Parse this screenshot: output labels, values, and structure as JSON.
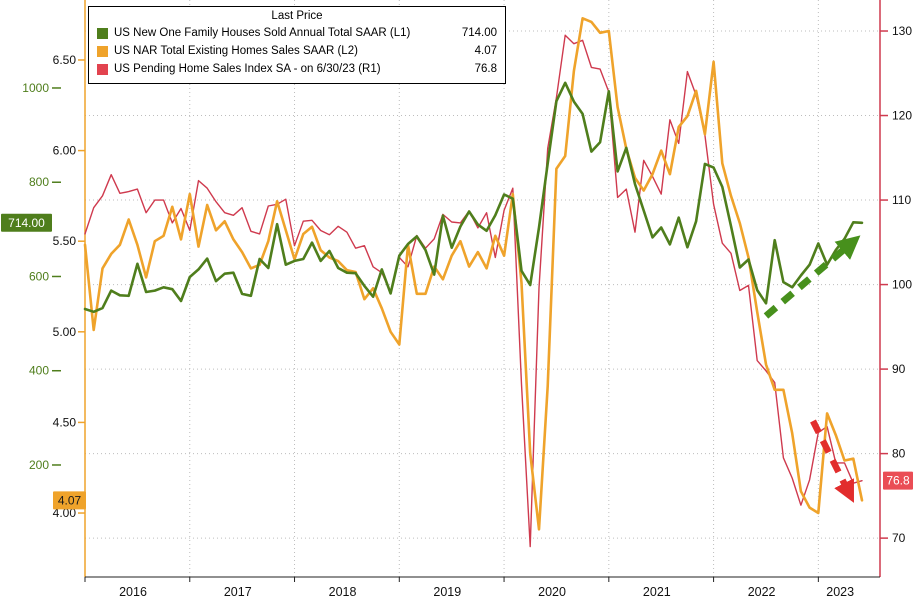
{
  "legend": {
    "title": "Last Price",
    "rows": [
      {
        "label": "US New One Family Houses Sold Annual Total SAAR  (L1)",
        "value": "714.00",
        "color": "#4f7e1c"
      },
      {
        "label": "US NAR Total Existing Homes Sales SAAR  (L2)",
        "value": "4.07",
        "color": "#efa32b"
      },
      {
        "label": "US Pending Home Sales Index SA -  on 6/30/23  (R1)",
        "value": "76.8",
        "color": "#e2434f"
      }
    ]
  },
  "chart_data": {
    "type": "line",
    "title": "Last Price",
    "frequency": "monthly",
    "x_start": "2016-01",
    "x_end": "2023-06",
    "x_tick_labels": [
      "2016",
      "2017",
      "2018",
      "2019",
      "2020",
      "2021",
      "2022",
      "2023"
    ],
    "grid": {
      "horizontal_on_axis": "R1",
      "style": "dotted",
      "color": "#bdbdbd"
    },
    "axes": {
      "L1": {
        "side": "left-outer",
        "min": -37.7,
        "max": 1186.7,
        "tick_values": [
          200,
          400,
          600,
          800,
          1000
        ],
        "tick_labels": [
          "200",
          "400",
          "600",
          "800",
          "1000"
        ],
        "last_value": 714.0,
        "last_label": "714.00",
        "color": "#4f7e1c",
        "badge_bg": "#4f7e1c",
        "badge_text_color": "#ffffff"
      },
      "L2": {
        "side": "left-inner",
        "min": 3.647,
        "max": 6.831,
        "tick_values": [
          4.0,
          4.5,
          5.0,
          5.5,
          6.0,
          6.5
        ],
        "tick_labels": [
          "4.00",
          "4.50",
          "5.00",
          "5.50",
          "6.00",
          "6.50"
        ],
        "last_value": 4.07,
        "last_label": "4.07",
        "color": "#efa32b",
        "badge_bg": "#efa32b",
        "badge_text_color": "#1a1a1a"
      },
      "R1": {
        "side": "right",
        "min": 65.4,
        "max": 133.67,
        "tick_values": [
          70,
          80,
          90,
          100,
          110,
          120,
          130
        ],
        "tick_labels": [
          "70",
          "80",
          "90",
          "100",
          "110",
          "120",
          "130"
        ],
        "last_value": 76.8,
        "last_label": "76.8",
        "color": "#cf3a4e",
        "badge_bg": "#ea4d55",
        "badge_text_color": "#ffffff"
      }
    },
    "series": [
      {
        "id": "new-home-sales",
        "name": "US New One Family Houses Sold Annual Total SAAR",
        "axis": "L1",
        "color": "#4f7e1c",
        "last_label": "714.00",
        "values": [
          531,
          525,
          533,
          570,
          560,
          559,
          627,
          567,
          570,
          577,
          573,
          548,
          599,
          615,
          638,
          590,
          606,
          608,
          563,
          559,
          637,
          618,
          711,
          625,
          633,
          637,
          672,
          633,
          654,
          618,
          608,
          607,
          580,
          557,
          615,
          564,
          644,
          669,
          685,
          656,
          604,
          729,
          661,
          706,
          738,
          710,
          697,
          730,
          774,
          765,
          612,
          582,
          704,
          840,
          972,
          1011,
          971,
          945,
          865,
          885,
          993,
          823,
          873,
          796,
          740,
          683,
          704,
          668,
          725,
          662,
          717,
          839,
          831,
          790,
          707,
          619,
          636,
          571,
          543,
          677,
          588,
          577,
          602,
          625,
          670,
          625,
          656,
          680,
          715,
          714
        ]
      },
      {
        "id": "existing-home-sales",
        "name": "US NAR Total Existing Homes Sales SAAR",
        "axis": "L2",
        "color": "#efa32b",
        "last_label": "4.07",
        "values": [
          5.48,
          5.01,
          5.35,
          5.43,
          5.48,
          5.62,
          5.48,
          5.3,
          5.5,
          5.53,
          5.69,
          5.51,
          5.76,
          5.47,
          5.7,
          5.56,
          5.61,
          5.51,
          5.44,
          5.35,
          5.37,
          5.5,
          5.72,
          5.56,
          5.4,
          5.54,
          5.58,
          5.45,
          5.41,
          5.39,
          5.34,
          5.33,
          5.18,
          5.24,
          5.13,
          5.0,
          4.93,
          5.48,
          5.21,
          5.21,
          5.36,
          5.29,
          5.42,
          5.5,
          5.36,
          5.44,
          5.35,
          5.53,
          5.42,
          5.76,
          5.27,
          4.33,
          3.91,
          4.7,
          5.9,
          5.97,
          6.44,
          6.73,
          6.71,
          6.65,
          6.66,
          6.24,
          6.01,
          5.85,
          5.78,
          5.87,
          6.0,
          5.87,
          6.13,
          6.19,
          6.33,
          6.09,
          6.49,
          5.93,
          5.75,
          5.6,
          5.41,
          5.11,
          4.82,
          4.68,
          4.68,
          4.44,
          4.12,
          4.03,
          4.0,
          4.55,
          4.43,
          4.29,
          4.3,
          4.07
        ]
      },
      {
        "id": "pending-home-sales-index",
        "name": "US Pending Home Sales Index SA",
        "axis": "R1",
        "color": "#cf3a4e",
        "last_label": "76.8",
        "as_of": "6/30/23",
        "values": [
          106.0,
          109.1,
          110.5,
          113.0,
          110.8,
          111.0,
          111.3,
          108.5,
          110.0,
          110.0,
          107.3,
          109.0,
          106.4,
          112.3,
          111.4,
          109.8,
          108.5,
          108.2,
          109.1,
          106.3,
          106.0,
          109.3,
          109.5,
          110.1,
          104.6,
          107.5,
          107.6,
          106.4,
          105.9,
          106.9,
          106.2,
          104.3,
          104.6,
          102.1,
          101.4,
          99.1,
          103.2,
          102.1,
          105.8,
          104.3,
          105.4,
          108.3,
          107.4,
          107.3,
          108.7,
          106.7,
          108.5,
          103.2,
          108.8,
          111.4,
          88.2,
          69.0,
          99.6,
          116.1,
          122.1,
          129.5,
          128.5,
          128.9,
          125.7,
          125.5,
          122.8,
          110.3,
          111.3,
          106.2,
          114.7,
          112.8,
          110.7,
          119.5,
          116.7,
          125.2,
          122.4,
          117.7,
          109.5,
          104.9,
          103.7,
          99.3,
          99.9,
          91.0,
          89.8,
          88.4,
          79.5,
          77.1,
          73.9,
          76.9,
          82.5,
          83.2,
          78.9,
          78.9,
          76.5,
          76.8
        ]
      }
    ],
    "annotations": [
      {
        "id": "green-trend-arrow",
        "type": "arrow",
        "direction": "up-right",
        "style": "dashed",
        "color": "#47901c"
      },
      {
        "id": "red-trend-arrow",
        "type": "arrow",
        "direction": "down-right",
        "style": "dashed",
        "color": "#e22d2d"
      }
    ]
  }
}
